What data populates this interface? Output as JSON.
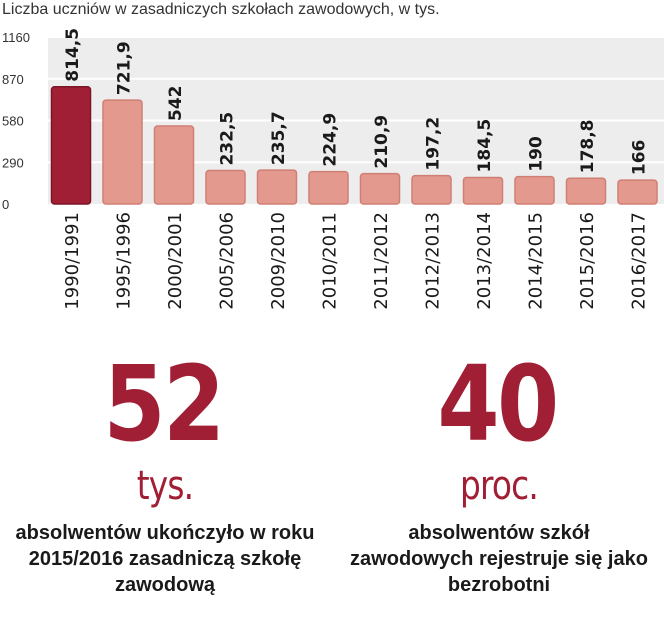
{
  "colors": {
    "highlight_bar": "#A01F35",
    "bar": "#E4998E",
    "bar_stroke": "#D07F74",
    "plot_bg": "#EDEDED",
    "grid": "#FFFFFF",
    "stat_accent": "#A01F35"
  },
  "chart_data": {
    "type": "bar",
    "title": "Liczba uczniów w zasadniczych szkołach zawodowych, w tys.",
    "xlabel": "",
    "ylabel": "",
    "ylim": [
      0,
      1160
    ],
    "yticks": [
      "0",
      "290",
      "580",
      "870",
      "1160"
    ],
    "grid": true,
    "categories": [
      "1990/1991",
      "1995/1996",
      "2000/2001",
      "2005/2006",
      "2009/2010",
      "2010/2011",
      "2011/2012",
      "2012/2013",
      "2013/2014",
      "2014/2015",
      "2015/2016",
      "2016/2017"
    ],
    "values": [
      814.5,
      721.9,
      542,
      232.5,
      235.7,
      224.9,
      210.9,
      197.2,
      184.5,
      190,
      178.8,
      166
    ],
    "value_labels": [
      "814,5",
      "721,9",
      "542",
      "232,5",
      "235,7",
      "224,9",
      "210,9",
      "197,2",
      "184,5",
      "190",
      "178,8",
      "166"
    ],
    "highlight_index": 0
  },
  "stats": [
    {
      "number": "52",
      "unit": "tys.",
      "description": "absolwentów ukończyło w roku 2015/2016 zasadniczą szkołę zawodową"
    },
    {
      "number": "40",
      "unit": "proc.",
      "description": "absolwentów szkół zawodowych rejestruje się jako bezrobotni"
    }
  ]
}
